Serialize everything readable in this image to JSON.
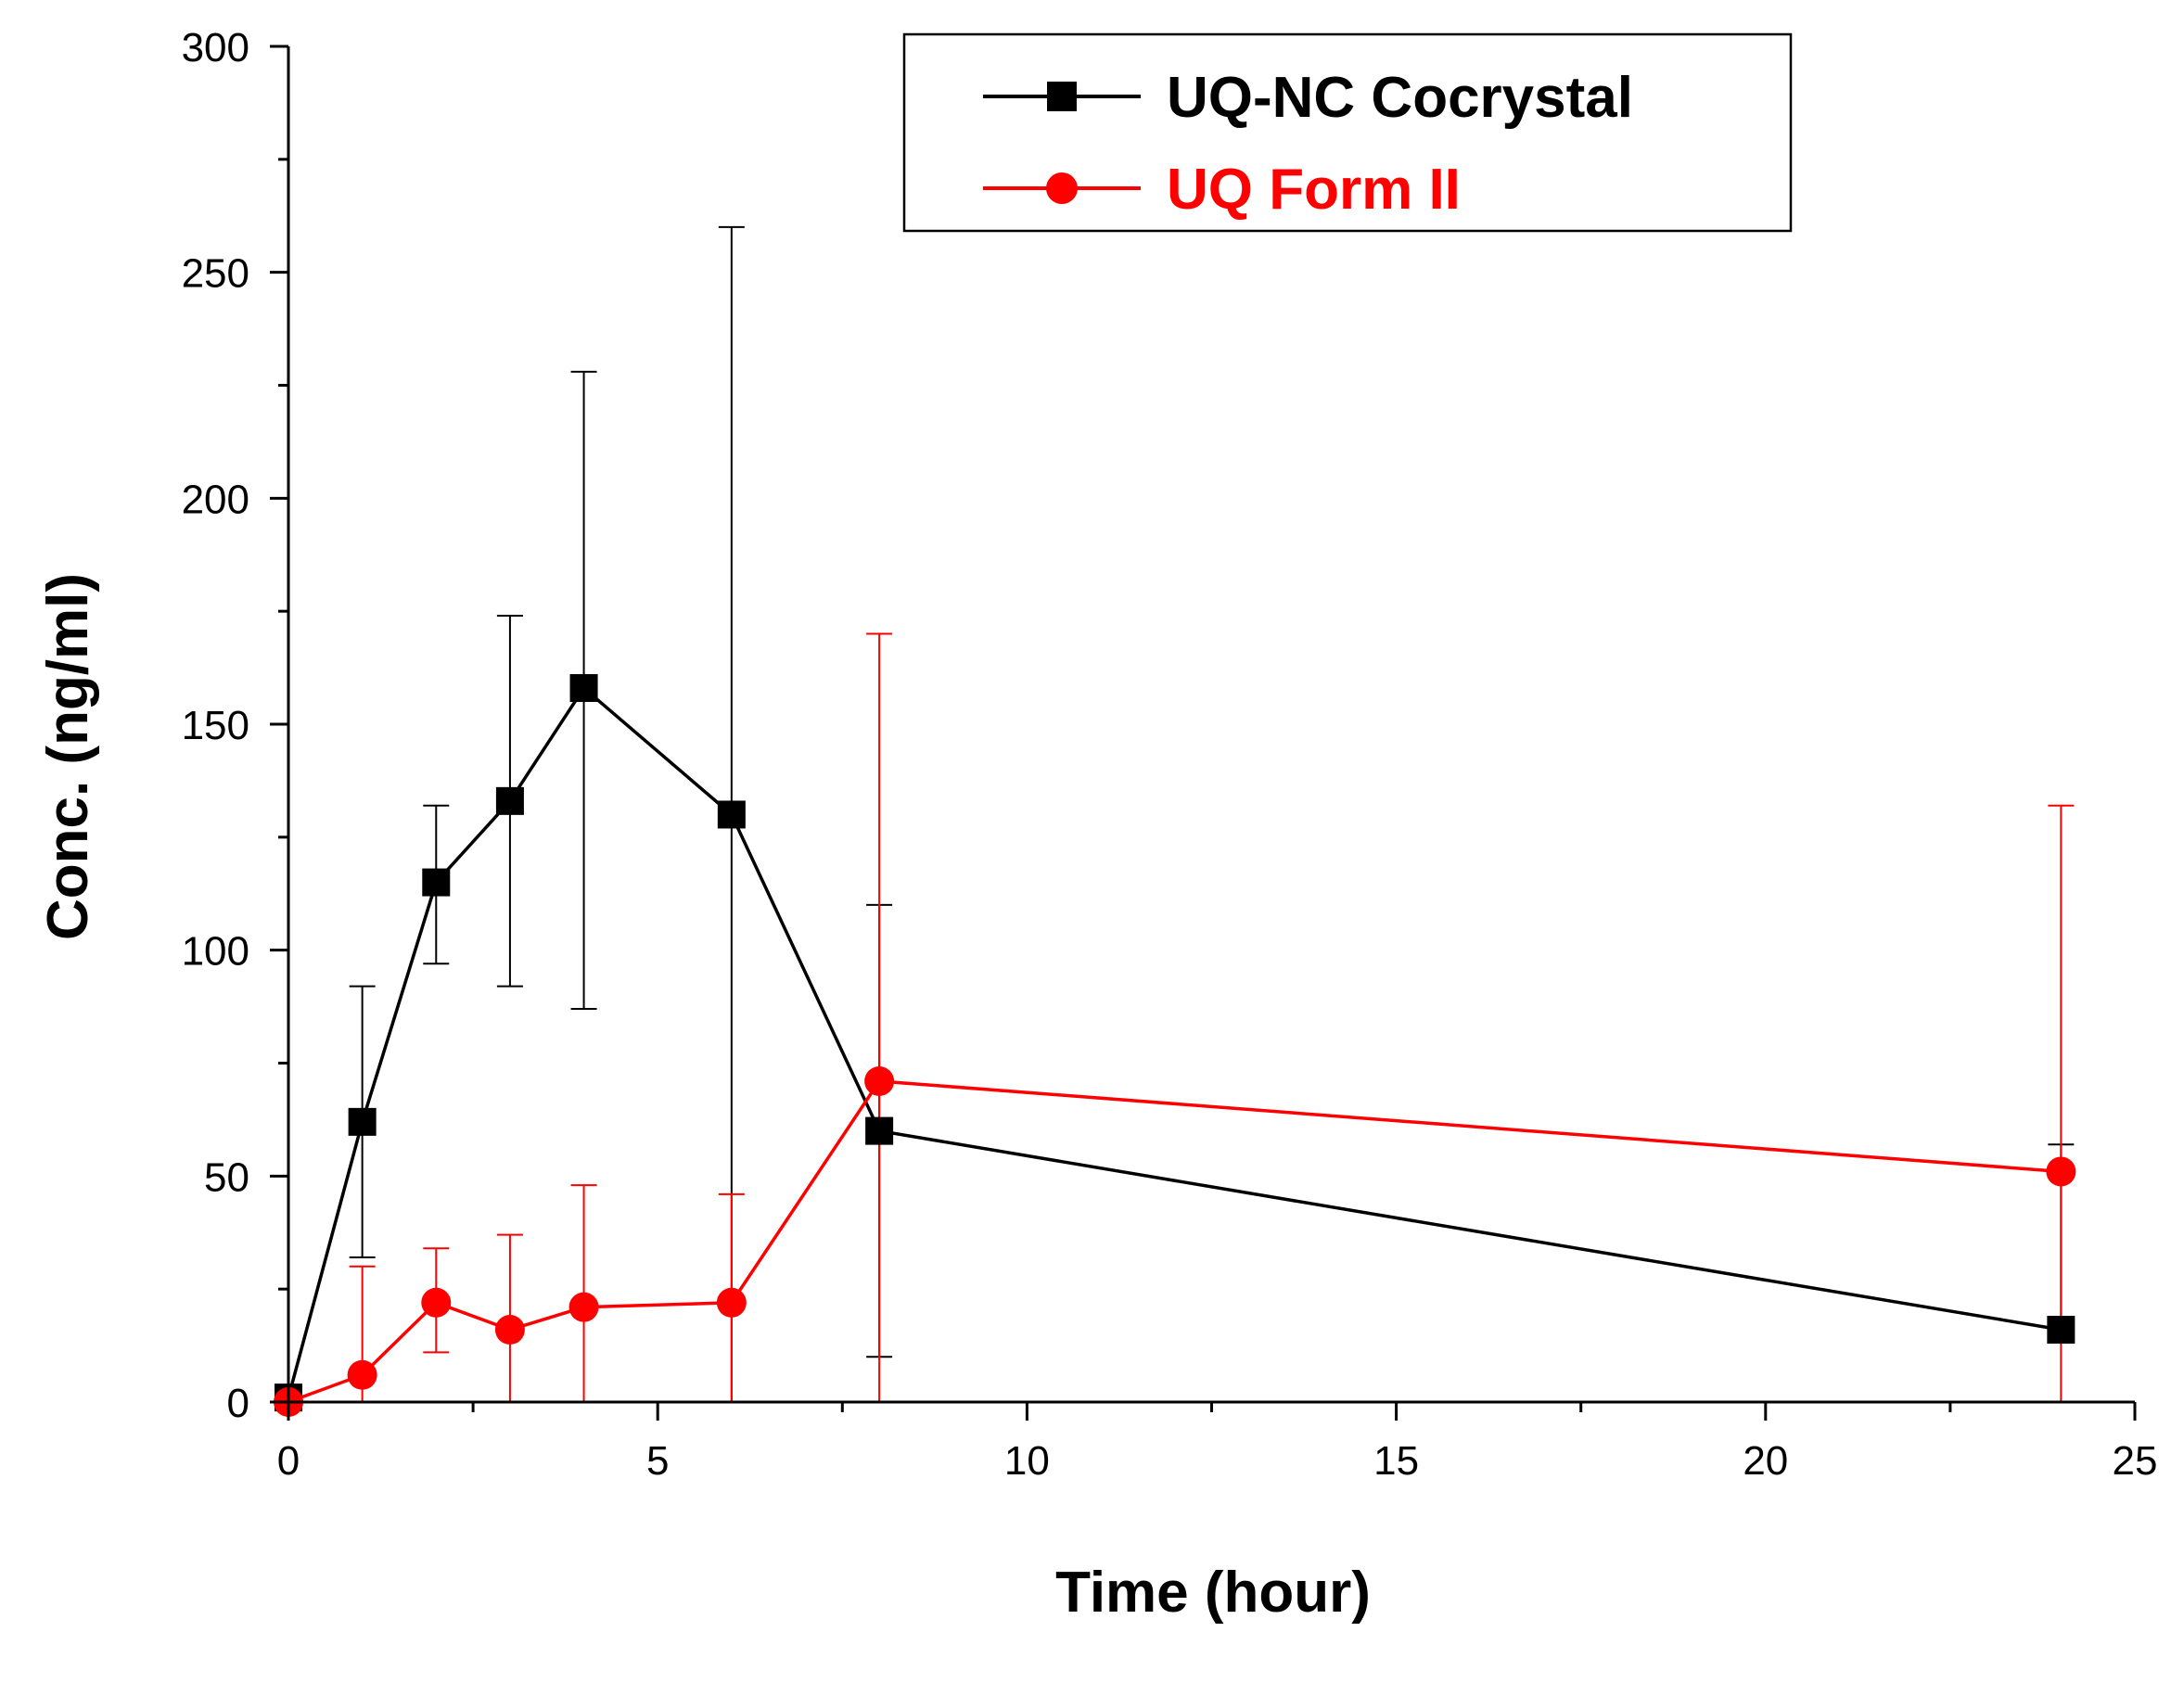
{
  "chart_data": {
    "type": "line",
    "title": "",
    "xlabel": "Time (hour)",
    "ylabel": "Conc. (ng/ml)",
    "xlim": [
      0,
      25
    ],
    "ylim": [
      0,
      300
    ],
    "xticks": [
      0,
      5,
      10,
      15,
      20,
      25
    ],
    "xtick_labels": [
      "0",
      "5",
      "10",
      "15",
      "20",
      "25"
    ],
    "yticks": [
      0,
      50,
      100,
      150,
      200,
      250,
      300
    ],
    "ytick_labels": [
      "0",
      "50",
      "100",
      "150",
      "200",
      "250",
      "300"
    ],
    "grid": false,
    "legend_position": "top-right",
    "series": [
      {
        "name": "UQ-NC Cocrystal",
        "color": "#000000",
        "marker": "square",
        "x": [
          0,
          1,
          2,
          3,
          4,
          6,
          8,
          24
        ],
        "y": [
          1,
          62,
          115,
          133,
          158,
          130,
          60,
          16
        ],
        "err_upper": [
          null,
          92,
          132,
          174,
          228,
          260,
          110,
          57
        ],
        "err_lower": [
          null,
          32,
          97,
          92,
          87,
          0,
          10,
          16
        ]
      },
      {
        "name": "UQ Form II",
        "color": "#ff0000",
        "marker": "circle",
        "x": [
          0,
          1,
          2,
          3,
          4,
          6,
          8,
          24
        ],
        "y": [
          0,
          6,
          22,
          16,
          21,
          22,
          71,
          51
        ],
        "err_upper": [
          null,
          30,
          34,
          37,
          48,
          46,
          170,
          132
        ],
        "err_lower": [
          null,
          0,
          11,
          0,
          0,
          0,
          0,
          0
        ]
      }
    ]
  }
}
